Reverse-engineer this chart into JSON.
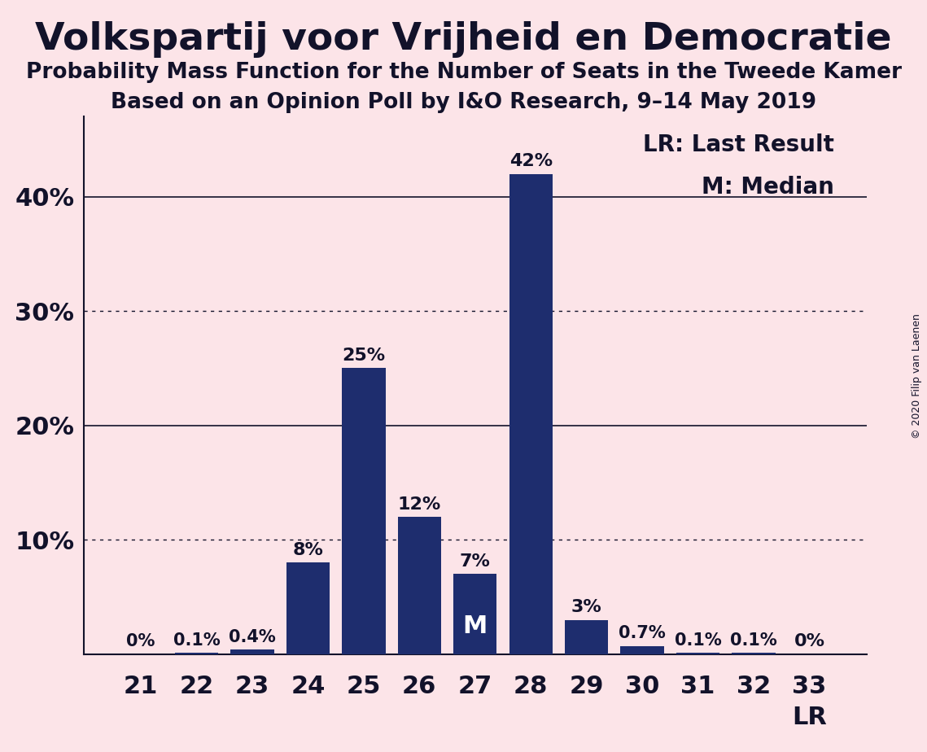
{
  "title": "Volkspartij voor Vrijheid en Democratie",
  "subtitle1": "Probability Mass Function for the Number of Seats in the Tweede Kamer",
  "subtitle2": "Based on an Opinion Poll by I&O Research, 9–14 May 2019",
  "copyright": "© 2020 Filip van Laenen",
  "legend_lr": "LR: Last Result",
  "legend_m": "M: Median",
  "categories": [
    21,
    22,
    23,
    24,
    25,
    26,
    27,
    28,
    29,
    30,
    31,
    32,
    33
  ],
  "values": [
    0.0,
    0.1,
    0.4,
    8.0,
    25.0,
    12.0,
    7.0,
    42.0,
    3.0,
    0.7,
    0.1,
    0.1,
    0.0
  ],
  "labels": [
    "0%",
    "0.1%",
    "0.4%",
    "8%",
    "25%",
    "12%",
    "7%",
    "42%",
    "3%",
    "0.7%",
    "0.1%",
    "0.1%",
    "0%"
  ],
  "bar_color": "#1e2d6e",
  "background_color": "#fce4e8",
  "text_color": "#12122a",
  "median_bar_index": 6,
  "lr_bar_index": 12,
  "ylim": [
    0,
    47
  ],
  "yticks": [
    10,
    20,
    30,
    40
  ],
  "ytick_labels": [
    "10%",
    "20%",
    "30%",
    "40%"
  ],
  "solid_gridlines": [
    20,
    40
  ],
  "dotted_gridlines": [
    10,
    30
  ],
  "label_fontsize": 16,
  "tick_fontsize": 22,
  "title_fontsize": 34,
  "subtitle_fontsize": 19,
  "legend_fontsize": 20
}
